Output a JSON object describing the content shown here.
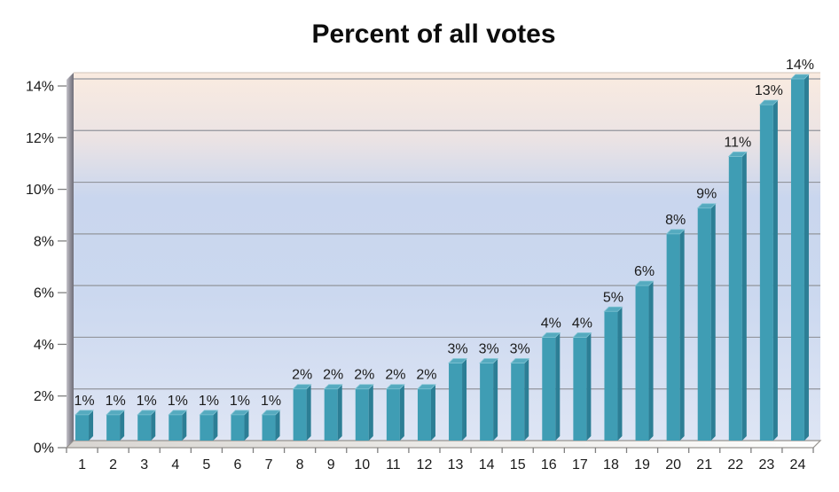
{
  "chart_data": {
    "type": "bar",
    "title": "Percent of all votes",
    "categories": [
      "1",
      "2",
      "3",
      "4",
      "5",
      "6",
      "7",
      "8",
      "9",
      "10",
      "11",
      "12",
      "13",
      "14",
      "15",
      "16",
      "17",
      "18",
      "19",
      "20",
      "21",
      "22",
      "23",
      "24"
    ],
    "values": [
      1,
      1,
      1,
      1,
      1,
      1,
      1,
      2,
      2,
      2,
      2,
      2,
      3,
      3,
      3,
      4,
      4,
      5,
      6,
      8,
      9,
      11,
      13,
      14
    ],
    "data_labels": [
      "1%",
      "1%",
      "1%",
      "1%",
      "1%",
      "1%",
      "1%",
      "2%",
      "2%",
      "2%",
      "2%",
      "2%",
      "3%",
      "3%",
      "3%",
      "4%",
      "4%",
      "5%",
      "6%",
      "8%",
      "9%",
      "11%",
      "13%",
      "14%"
    ],
    "yticks": [
      "0%",
      "2%",
      "4%",
      "6%",
      "8%",
      "10%",
      "12%",
      "14%"
    ],
    "ylim": [
      0,
      14
    ],
    "y_major_step": 2,
    "grid": true,
    "legend": "none",
    "style": "3d-perspective-walls",
    "colors": {
      "bar_front": "#3F9DB4",
      "bar_side": "#2C7E95",
      "bar_top": "#55AABF",
      "bar_top_highlight": "#7FC2D2",
      "gridline": "#92959C",
      "tick": "#7F7F7F",
      "wall_top_line": "#D2C3BA",
      "floor_stroke": "#96938F",
      "title_color": "#0D0D0D",
      "label_color": "#1A1A1A",
      "plot_gradient": [
        "#FAEBE0",
        "#EBE3E4",
        "#C9D6EE",
        "#CBD8EF",
        "#DEE5F4"
      ],
      "wall_gradient": [
        "#C8C6CC",
        "#9C9AA4",
        "#6F6E78"
      ],
      "floor_gradient": [
        "#D8D5D1",
        "#FDFDFC"
      ]
    }
  }
}
